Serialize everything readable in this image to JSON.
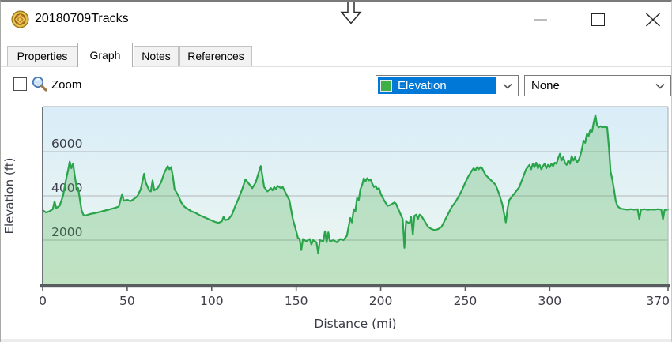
{
  "window": {
    "title": "20180709Tracks",
    "icon": "gold-medallion-compass",
    "controls": {
      "minimize": "minimize",
      "maximize": "maximize",
      "close": "close"
    }
  },
  "tabs": [
    {
      "label": "Properties",
      "active": false
    },
    {
      "label": "Graph",
      "active": true
    },
    {
      "label": "Notes",
      "active": false
    },
    {
      "label": "References",
      "active": false
    }
  ],
  "toolbar": {
    "zoom_label": "Zoom",
    "zoom_checked": false,
    "series_dropdown": {
      "value": "Elevation",
      "swatch_color": "#3cb047",
      "highlight_color": "#0078d7"
    },
    "secondary_dropdown": {
      "value": "None"
    }
  },
  "chart_data": {
    "type": "area",
    "title": "",
    "xlabel": "Distance  (mi)",
    "ylabel": "Elevation (ft)",
    "xlim": [
      0,
      370
    ],
    "ylim": [
      0,
      8000
    ],
    "x_ticks": [
      0,
      50,
      100,
      150,
      200,
      250,
      300,
      370
    ],
    "y_gridlines": [
      2000,
      4000,
      6000
    ],
    "grid": true,
    "legend_position": "none",
    "line_color": "#2aa44a",
    "fill_color": "rgba(76,175,80,0.28)",
    "bg_gradient_top": "#d9edf8",
    "bg_gradient_bottom": "#eef7ef",
    "axis_color": "#585d61",
    "grid_color": "#b2b8bc",
    "label_color": "#3c3c48",
    "series_name": "Elevation",
    "points": [
      [
        0,
        3350
      ],
      [
        2,
        3250
      ],
      [
        4,
        3300
      ],
      [
        6,
        3400
      ],
      [
        7,
        3750
      ],
      [
        8,
        3450
      ],
      [
        10,
        3550
      ],
      [
        12,
        4000
      ],
      [
        14,
        4800
      ],
      [
        15,
        5150
      ],
      [
        16,
        5550
      ],
      [
        17,
        5250
      ],
      [
        18,
        5450
      ],
      [
        19,
        4900
      ],
      [
        20,
        4400
      ],
      [
        21,
        4350
      ],
      [
        22,
        3850
      ],
      [
        23,
        3350
      ],
      [
        24,
        3150
      ],
      [
        25,
        3100
      ],
      [
        28,
        3180
      ],
      [
        31,
        3220
      ],
      [
        34,
        3280
      ],
      [
        37,
        3340
      ],
      [
        40,
        3400
      ],
      [
        43,
        3460
      ],
      [
        45,
        3520
      ],
      [
        47,
        4080
      ],
      [
        48,
        3780
      ],
      [
        50,
        3820
      ],
      [
        52,
        3760
      ],
      [
        54,
        3860
      ],
      [
        56,
        3980
      ],
      [
        58,
        4300
      ],
      [
        60,
        5000
      ],
      [
        61,
        4600
      ],
      [
        63,
        4250
      ],
      [
        64,
        4200
      ],
      [
        65,
        4700
      ],
      [
        66,
        4250
      ],
      [
        68,
        4350
      ],
      [
        70,
        4600
      ],
      [
        72,
        5050
      ],
      [
        74,
        5350
      ],
      [
        75,
        5200
      ],
      [
        76,
        5300
      ],
      [
        77,
        4900
      ],
      [
        78,
        4300
      ],
      [
        80,
        4050
      ],
      [
        82,
        3700
      ],
      [
        84,
        3500
      ],
      [
        86,
        3400
      ],
      [
        88,
        3300
      ],
      [
        90,
        3250
      ],
      [
        93,
        3120
      ],
      [
        96,
        3020
      ],
      [
        99,
        2920
      ],
      [
        102,
        2820
      ],
      [
        104,
        2780
      ],
      [
        106,
        2850
      ],
      [
        107,
        3050
      ],
      [
        108,
        2900
      ],
      [
        110,
        2950
      ],
      [
        112,
        3150
      ],
      [
        114,
        3550
      ],
      [
        116,
        3900
      ],
      [
        118,
        4300
      ],
      [
        120,
        4750
      ],
      [
        122,
        4550
      ],
      [
        124,
        4350
      ],
      [
        126,
        4600
      ],
      [
        128,
        5100
      ],
      [
        129,
        5350
      ],
      [
        130,
        4900
      ],
      [
        131,
        4400
      ],
      [
        133,
        4200
      ],
      [
        135,
        4350
      ],
      [
        136,
        4250
      ],
      [
        137,
        4400
      ],
      [
        138,
        4300
      ],
      [
        139,
        4450
      ],
      [
        141,
        4350
      ],
      [
        142,
        4400
      ],
      [
        144,
        4100
      ],
      [
        146,
        3800
      ],
      [
        148,
        2950
      ],
      [
        150,
        2400
      ],
      [
        151,
        2100
      ],
      [
        152,
        2050
      ],
      [
        153,
        1550
      ],
      [
        154,
        2050
      ],
      [
        156,
        1950
      ],
      [
        158,
        2050
      ],
      [
        159,
        1800
      ],
      [
        160,
        2000
      ],
      [
        162,
        1900
      ],
      [
        163,
        1400
      ],
      [
        164,
        2000
      ],
      [
        166,
        1950
      ],
      [
        167,
        2400
      ],
      [
        168,
        1900
      ],
      [
        169,
        2350
      ],
      [
        170,
        1950
      ],
      [
        172,
        2000
      ],
      [
        174,
        1900
      ],
      [
        176,
        2050
      ],
      [
        178,
        2000
      ],
      [
        180,
        2200
      ],
      [
        181,
        2600
      ],
      [
        182,
        3000
      ],
      [
        183,
        2800
      ],
      [
        184,
        3400
      ],
      [
        185,
        3300
      ],
      [
        186,
        3900
      ],
      [
        187,
        3800
      ],
      [
        188,
        4300
      ],
      [
        189,
        4500
      ],
      [
        190,
        4800
      ],
      [
        191,
        4650
      ],
      [
        192,
        4800
      ],
      [
        193,
        4700
      ],
      [
        194,
        4750
      ],
      [
        195,
        4550
      ],
      [
        196,
        4400
      ],
      [
        197,
        4450
      ],
      [
        198,
        4300
      ],
      [
        199,
        4350
      ],
      [
        200,
        4100
      ],
      [
        202,
        3800
      ],
      [
        204,
        3550
      ],
      [
        206,
        3600
      ],
      [
        208,
        3700
      ],
      [
        209,
        3650
      ],
      [
        211,
        3300
      ],
      [
        213,
        2950
      ],
      [
        214,
        1650
      ],
      [
        215,
        2850
      ],
      [
        217,
        2750
      ],
      [
        218,
        3050
      ],
      [
        219,
        2250
      ],
      [
        220,
        3100
      ],
      [
        221,
        3150
      ],
      [
        222,
        2950
      ],
      [
        223,
        3150
      ],
      [
        224,
        3100
      ],
      [
        226,
        2850
      ],
      [
        228,
        2600
      ],
      [
        230,
        2500
      ],
      [
        232,
        2450
      ],
      [
        234,
        2500
      ],
      [
        236,
        2600
      ],
      [
        238,
        2900
      ],
      [
        240,
        3200
      ],
      [
        242,
        3500
      ],
      [
        244,
        3700
      ],
      [
        246,
        3950
      ],
      [
        248,
        4250
      ],
      [
        250,
        4600
      ],
      [
        252,
        4900
      ],
      [
        254,
        5150
      ],
      [
        255,
        5250
      ],
      [
        256,
        5150
      ],
      [
        257,
        5300
      ],
      [
        258,
        5200
      ],
      [
        259,
        5300
      ],
      [
        260,
        5250
      ],
      [
        262,
        4950
      ],
      [
        264,
        4800
      ],
      [
        266,
        4650
      ],
      [
        268,
        4500
      ],
      [
        270,
        4100
      ],
      [
        272,
        3600
      ],
      [
        273,
        3200
      ],
      [
        274,
        2800
      ],
      [
        275,
        3400
      ],
      [
        276,
        3800
      ],
      [
        278,
        4000
      ],
      [
        280,
        4200
      ],
      [
        282,
        4400
      ],
      [
        284,
        4800
      ],
      [
        286,
        5200
      ],
      [
        288,
        5400
      ],
      [
        289,
        5200
      ],
      [
        290,
        5450
      ],
      [
        291,
        5300
      ],
      [
        292,
        5500
      ],
      [
        293,
        5250
      ],
      [
        294,
        5400
      ],
      [
        295,
        5200
      ],
      [
        296,
        5350
      ],
      [
        297,
        5450
      ],
      [
        298,
        5250
      ],
      [
        299,
        5400
      ],
      [
        300,
        5300
      ],
      [
        301,
        5450
      ],
      [
        302,
        5350
      ],
      [
        303,
        5500
      ],
      [
        304,
        5450
      ],
      [
        305,
        5700
      ],
      [
        306,
        5900
      ],
      [
        307,
        5600
      ],
      [
        308,
        5750
      ],
      [
        309,
        5500
      ],
      [
        310,
        5400
      ],
      [
        311,
        5600
      ],
      [
        312,
        5450
      ],
      [
        313,
        5800
      ],
      [
        314,
        5600
      ],
      [
        315,
        5750
      ],
      [
        316,
        5500
      ],
      [
        317,
        5600
      ],
      [
        318,
        5800
      ],
      [
        319,
        6100
      ],
      [
        320,
        6500
      ],
      [
        321,
        6400
      ],
      [
        322,
        6800
      ],
      [
        323,
        6700
      ],
      [
        324,
        7000
      ],
      [
        325,
        6900
      ],
      [
        326,
        7300
      ],
      [
        327,
        7650
      ],
      [
        328,
        7200
      ],
      [
        329,
        7100
      ],
      [
        330,
        7150
      ],
      [
        331,
        7100
      ],
      [
        332,
        7120
      ],
      [
        333,
        7100
      ],
      [
        334,
        7100
      ],
      [
        335,
        6200
      ],
      [
        336,
        5100
      ],
      [
        337,
        4740
      ],
      [
        338,
        4300
      ],
      [
        339,
        3800
      ],
      [
        340,
        3550
      ],
      [
        341,
        3480
      ],
      [
        342,
        3420
      ],
      [
        344,
        3400
      ],
      [
        346,
        3380
      ],
      [
        348,
        3400
      ],
      [
        350,
        3380
      ],
      [
        352,
        3400
      ],
      [
        353,
        2950
      ],
      [
        354,
        3380
      ],
      [
        356,
        3400
      ],
      [
        358,
        3370
      ],
      [
        360,
        3390
      ],
      [
        362,
        3380
      ],
      [
        364,
        3400
      ],
      [
        366,
        3380
      ],
      [
        367,
        2950
      ],
      [
        368,
        3380
      ],
      [
        370,
        3370
      ]
    ]
  }
}
